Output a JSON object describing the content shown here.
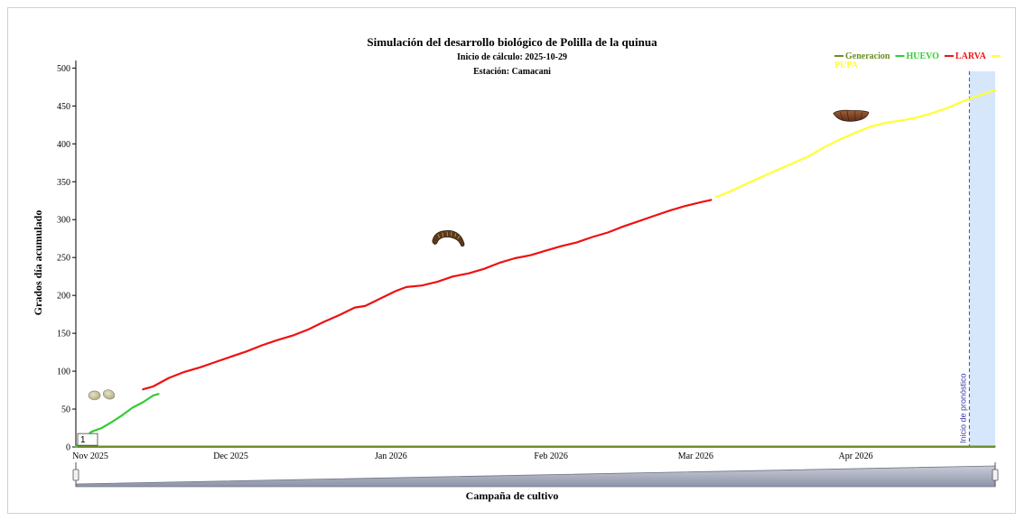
{
  "chart_data": {
    "type": "line",
    "title": "Simulación del desarrollo biológico de Polilla de la quinua",
    "subtitles": [
      "Inicio de cálculo: 2025-10-29",
      "Estación: Camacani"
    ],
    "ylabel": "Grados día acumulado",
    "xlabel": "Campaña de cultivo",
    "ylim": [
      0,
      510
    ],
    "yticks": [
      0,
      50,
      100,
      150,
      200,
      250,
      300,
      350,
      400,
      450,
      500
    ],
    "x_range": [
      "2025-11-01",
      "2026-04-28"
    ],
    "xticks": [
      {
        "date": "2025-11-01",
        "label": "Nov 2025"
      },
      {
        "date": "2025-12-01",
        "label": "Dec 2025"
      },
      {
        "date": "2026-01-01",
        "label": "Jan 2026"
      },
      {
        "date": "2026-02-01",
        "label": "Feb 2026"
      },
      {
        "date": "2026-03-01",
        "label": "Mar 2026"
      },
      {
        "date": "2026-04-01",
        "label": "Apr 2026"
      }
    ],
    "legend": {
      "placement": "top-right",
      "items": [
        {
          "name": "Generacion",
          "color": "#6b8e23"
        },
        {
          "name": "HUEVO",
          "color": "#33cc33"
        },
        {
          "name": "LARVA",
          "color": "#ee1111"
        },
        {
          "name": "PUPA",
          "color": "#ffff33"
        }
      ]
    },
    "series": [
      {
        "name": "Generacion",
        "color": "#6b8e23",
        "values": [
          {
            "x": "2025-11-01",
            "y": 1
          },
          {
            "x": "2026-04-28",
            "y": 1
          }
        ]
      },
      {
        "name": "HUEVO",
        "color": "#33cc33",
        "values": [
          {
            "x": "2025-11-01",
            "y": 0
          },
          {
            "x": "2025-11-04",
            "y": 20
          },
          {
            "x": "2025-11-06",
            "y": 25
          },
          {
            "x": "2025-11-08",
            "y": 33
          },
          {
            "x": "2025-11-10",
            "y": 42
          },
          {
            "x": "2025-11-12",
            "y": 52
          },
          {
            "x": "2025-11-14",
            "y": 59
          },
          {
            "x": "2025-11-16",
            "y": 68
          },
          {
            "x": "2025-11-17",
            "y": 70
          }
        ]
      },
      {
        "name": "LARVA",
        "color": "#ee1111",
        "values": [
          {
            "x": "2025-11-14",
            "y": 76
          },
          {
            "x": "2025-11-16",
            "y": 80
          },
          {
            "x": "2025-11-19",
            "y": 91
          },
          {
            "x": "2025-11-22",
            "y": 99
          },
          {
            "x": "2025-11-25",
            "y": 105
          },
          {
            "x": "2025-11-28",
            "y": 112
          },
          {
            "x": "2025-12-01",
            "y": 119
          },
          {
            "x": "2025-12-04",
            "y": 126
          },
          {
            "x": "2025-12-07",
            "y": 134
          },
          {
            "x": "2025-12-10",
            "y": 141
          },
          {
            "x": "2025-12-13",
            "y": 147
          },
          {
            "x": "2025-12-16",
            "y": 155
          },
          {
            "x": "2025-12-19",
            "y": 165
          },
          {
            "x": "2025-12-22",
            "y": 174
          },
          {
            "x": "2025-12-25",
            "y": 184
          },
          {
            "x": "2025-12-27",
            "y": 186
          },
          {
            "x": "2025-12-30",
            "y": 196
          },
          {
            "x": "2026-01-02",
            "y": 206
          },
          {
            "x": "2026-01-04",
            "y": 211
          },
          {
            "x": "2026-01-07",
            "y": 213
          },
          {
            "x": "2026-01-10",
            "y": 218
          },
          {
            "x": "2026-01-13",
            "y": 225
          },
          {
            "x": "2026-01-16",
            "y": 229
          },
          {
            "x": "2026-01-19",
            "y": 235
          },
          {
            "x": "2026-01-22",
            "y": 243
          },
          {
            "x": "2026-01-25",
            "y": 249
          },
          {
            "x": "2026-01-28",
            "y": 253
          },
          {
            "x": "2026-01-31",
            "y": 259
          },
          {
            "x": "2026-02-03",
            "y": 265
          },
          {
            "x": "2026-02-06",
            "y": 270
          },
          {
            "x": "2026-02-09",
            "y": 277
          },
          {
            "x": "2026-02-12",
            "y": 283
          },
          {
            "x": "2026-02-15",
            "y": 291
          },
          {
            "x": "2026-02-18",
            "y": 298
          },
          {
            "x": "2026-02-21",
            "y": 305
          },
          {
            "x": "2026-02-24",
            "y": 312
          },
          {
            "x": "2026-02-27",
            "y": 318
          },
          {
            "x": "2026-03-02",
            "y": 323
          },
          {
            "x": "2026-03-04",
            "y": 326
          }
        ]
      },
      {
        "name": "PUPA",
        "color": "#ffff33",
        "values": [
          {
            "x": "2026-03-05",
            "y": 330
          },
          {
            "x": "2026-03-08",
            "y": 338
          },
          {
            "x": "2026-03-11",
            "y": 348
          },
          {
            "x": "2026-03-14",
            "y": 357
          },
          {
            "x": "2026-03-17",
            "y": 366
          },
          {
            "x": "2026-03-20",
            "y": 375
          },
          {
            "x": "2026-03-23",
            "y": 384
          },
          {
            "x": "2026-03-26",
            "y": 396
          },
          {
            "x": "2026-03-29",
            "y": 406
          },
          {
            "x": "2026-04-01",
            "y": 415
          },
          {
            "x": "2026-04-04",
            "y": 423
          },
          {
            "x": "2026-04-07",
            "y": 428
          },
          {
            "x": "2026-04-10",
            "y": 431
          },
          {
            "x": "2026-04-13",
            "y": 435
          },
          {
            "x": "2026-04-16",
            "y": 441
          },
          {
            "x": "2026-04-19",
            "y": 448
          },
          {
            "x": "2026-04-22",
            "y": 457
          },
          {
            "x": "2026-04-25",
            "y": 464
          },
          {
            "x": "2026-04-28",
            "y": 471
          }
        ]
      }
    ],
    "generation_label": "1",
    "forecast": {
      "start": "2026-04-23",
      "end": "2026-04-28",
      "label": "Inicio de pronóstico"
    },
    "stage_icons": [
      {
        "stage": "HUEVO",
        "icon": "egg-icon",
        "x": "2025-11-06",
        "y": 68
      },
      {
        "stage": "LARVA",
        "icon": "larva-icon",
        "x": "2026-01-12",
        "y": 276
      },
      {
        "stage": "PUPA",
        "icon": "pupa-icon",
        "x": "2026-03-31",
        "y": 438
      }
    ],
    "range_selector": {
      "from": "2025-11-01",
      "to": "2026-04-28"
    },
    "grid": false
  }
}
